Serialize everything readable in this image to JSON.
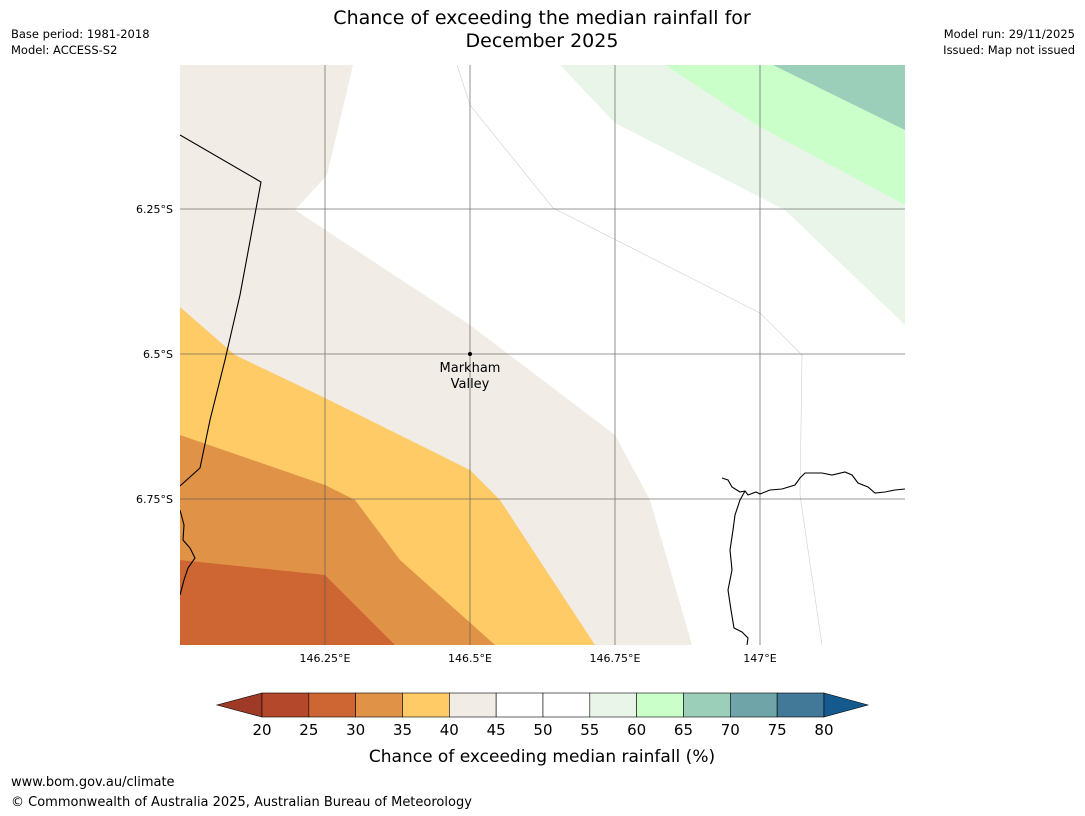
{
  "title_line1": "Chance of exceeding the median rainfall for",
  "title_line2": "December 2025",
  "meta_left": {
    "base_period": "Base period: 1981-2018",
    "model": "Model: ACCESS-S2"
  },
  "meta_right": {
    "model_run": "Model run: 29/11/2025",
    "issued": "Issued: Map not issued"
  },
  "map": {
    "lat_labels": [
      "6.25°S",
      "6.5°S",
      "6.75°S"
    ],
    "lon_labels": [
      "146.25°E",
      "146.5°E",
      "146.75°E",
      "147°E"
    ],
    "place": {
      "line1": "Markham",
      "line2": "Valley"
    }
  },
  "colorbar": {
    "ticks": [
      "20",
      "25",
      "30",
      "35",
      "40",
      "45",
      "50",
      "55",
      "60",
      "65",
      "70",
      "75",
      "80"
    ],
    "colors": [
      "#9e3a25",
      "#b3492a",
      "#cd6632",
      "#e09347",
      "#fecb66",
      "#f1ece6",
      "#ffffff",
      "#ffffff",
      "#eaf5ea",
      "#caffca",
      "#9bcfb9",
      "#6fa5a8",
      "#427999",
      "#155a8e"
    ],
    "label": "Chance of exceeding median rainfall (%)"
  },
  "footer": {
    "url": "www.bom.gov.au/climate",
    "copyright": "© Commonwealth of Australia 2025, Australian Bureau of Meteorology"
  }
}
